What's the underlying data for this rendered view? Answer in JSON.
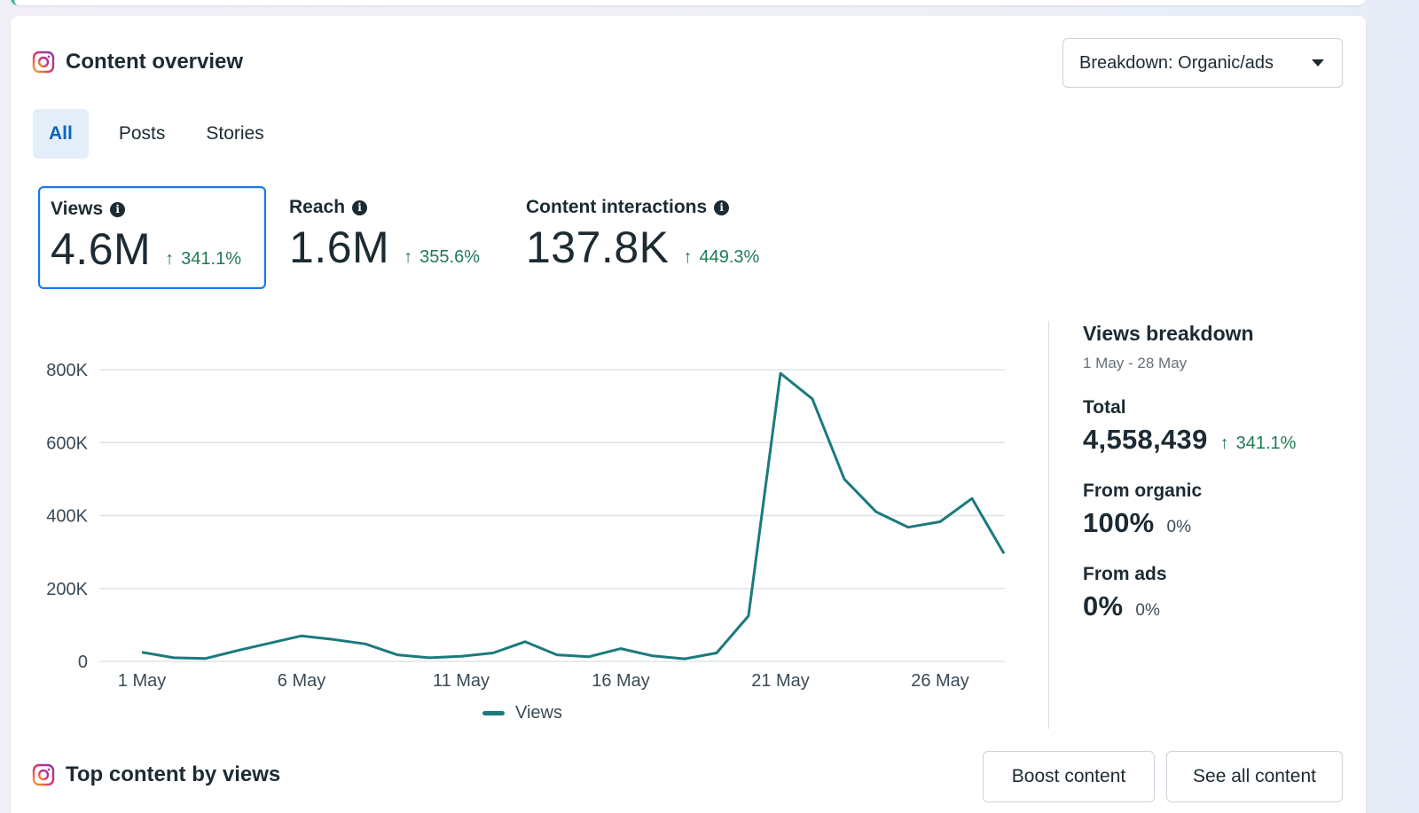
{
  "content_overview": {
    "title": "Content overview",
    "breakdown_label": "Breakdown: Organic/ads",
    "tabs": [
      {
        "label": "All",
        "active": true
      },
      {
        "label": "Posts",
        "active": false
      },
      {
        "label": "Stories",
        "active": false
      }
    ],
    "metrics": [
      {
        "label": "Views",
        "value": "4.6M",
        "change": "341.1%",
        "selected": true
      },
      {
        "label": "Reach",
        "value": "1.6M",
        "change": "355.6%",
        "selected": false
      },
      {
        "label": "Content interactions",
        "value": "137.8K",
        "change": "449.3%",
        "selected": false
      }
    ]
  },
  "chart_data": {
    "type": "line",
    "x_tick_labels": [
      "1 May",
      "6 May",
      "11 May",
      "16 May",
      "21 May",
      "26 May"
    ],
    "y_tick_labels": [
      "0",
      "200K",
      "400K",
      "600K",
      "800K"
    ],
    "ylim": [
      0,
      800000
    ],
    "grid": true,
    "legend": "bottom",
    "color": "#1a7a7e",
    "series": [
      {
        "name": "Views",
        "x": [
          "1 May",
          "2 May",
          "3 May",
          "4 May",
          "5 May",
          "6 May",
          "7 May",
          "8 May",
          "9 May",
          "10 May",
          "11 May",
          "12 May",
          "13 May",
          "14 May",
          "15 May",
          "16 May",
          "17 May",
          "18 May",
          "19 May",
          "20 May",
          "21 May",
          "22 May",
          "23 May",
          "24 May",
          "25 May",
          "26 May",
          "27 May",
          "28 May"
        ],
        "values": [
          25000,
          10000,
          8000,
          30000,
          50000,
          70000,
          60000,
          48000,
          18000,
          10000,
          14000,
          23000,
          54000,
          18000,
          13000,
          35000,
          15000,
          7000,
          23000,
          125000,
          790000,
          720000,
          500000,
          410000,
          368000,
          383000,
          447000,
          296000
        ]
      }
    ]
  },
  "views_breakdown": {
    "title": "Views breakdown",
    "date_range": "1 May - 28 May",
    "total_label": "Total",
    "total_value": "4,558,439",
    "total_change": "341.1%",
    "organic_label": "From organic",
    "organic_value": "100%",
    "organic_change": "0%",
    "ads_label": "From ads",
    "ads_value": "0%",
    "ads_change": "0%"
  },
  "top_content": {
    "title": "Top content by views",
    "boost_label": "Boost content",
    "see_all_label": "See all content"
  },
  "icons": {
    "arrow": "↑",
    "info": "i"
  }
}
